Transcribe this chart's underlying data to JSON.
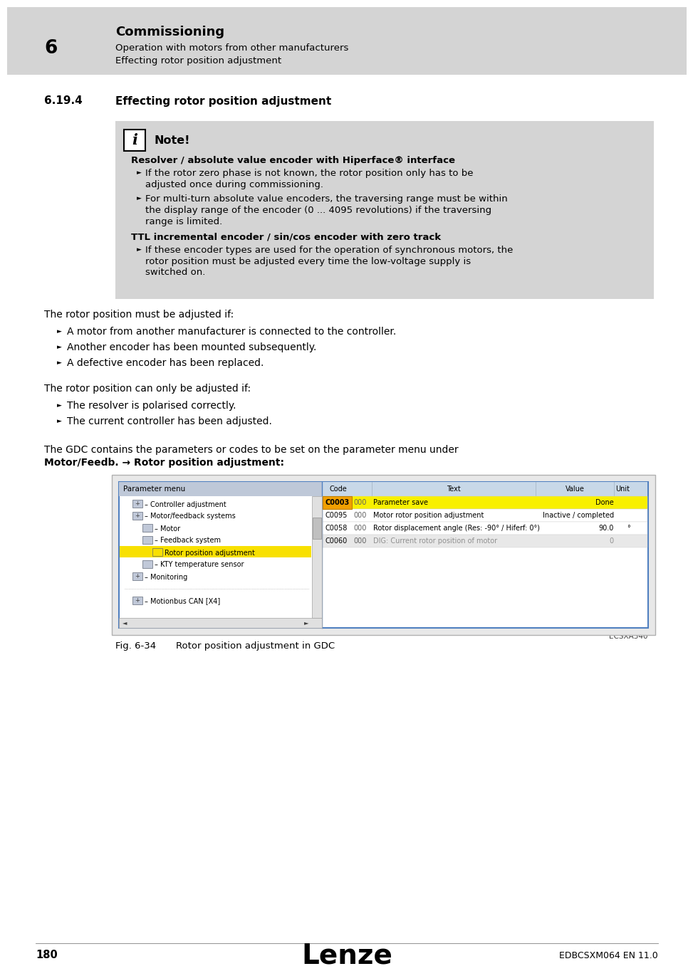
{
  "page_bg": "#ffffff",
  "header_bg": "#d4d4d4",
  "header_number": "6",
  "header_title": "Commissioning",
  "header_sub1": "Operation with motors from other manufacturers",
  "header_sub2": "Effecting rotor position adjustment",
  "section_number": "6.19.4",
  "section_title": "Effecting rotor position adjustment",
  "note_bg": "#d4d4d4",
  "note_title": "Note!",
  "note_bold1": "Resolver / absolute value encoder with Hiperface® interface",
  "note_bullet1a": "If the rotor zero phase is not known, the rotor position only has to be",
  "note_bullet1b": "adjusted once during commissioning.",
  "note_bullet2a": "For multi-turn absolute value encoders, the traversing range must be within",
  "note_bullet2b": "the display range of the encoder (0 ... 4095 revolutions) if the traversing",
  "note_bullet2c": "range is limited.",
  "note_bold2": "TTL incremental encoder / sin/cos encoder with zero track",
  "note_bullet3a": "If these encoder types are used for the operation of synchronous motors, the",
  "note_bullet3b": "rotor position must be adjusted every time the low-voltage supply is",
  "note_bullet3c": "switched on.",
  "body_text1": "The rotor position must be adjusted if:",
  "body_bullets1": [
    "A motor from another manufacturer is connected to the controller.",
    "Another encoder has been mounted subsequently.",
    "A defective encoder has been replaced."
  ],
  "body_text2": "The rotor position can only be adjusted if:",
  "body_bullets2": [
    "The resolver is polarised correctly.",
    "The current controller has been adjusted."
  ],
  "body_text3a": "The GDC contains the parameters or codes to be set on the parameter menu under",
  "body_text3b": "Motor/Feedb. → Rotor position adjustment:",
  "fig_label": "ECSXA540",
  "fig_caption_label": "Fig. 6-34",
  "fig_caption_text": "Rotor position adjustment in GDC",
  "footer_page": "180",
  "footer_doc": "EDBCSXM064 EN 11.0",
  "lenze_logo": "Lenze"
}
